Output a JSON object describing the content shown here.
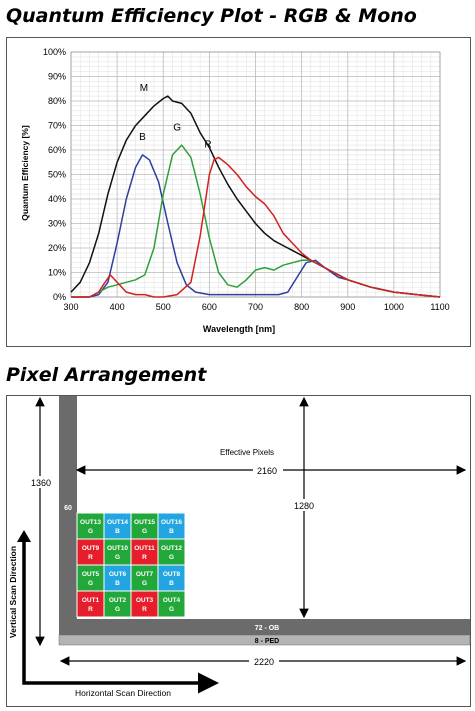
{
  "section1": {
    "title": "Quantum Efficiency Plot - RGB & Mono"
  },
  "section2": {
    "title": "Pixel Arrangement"
  },
  "chart_data": {
    "type": "line",
    "title": "",
    "xlabel": "Wavelength [nm]",
    "ylabel": "Quantum Efficiency [%]",
    "xlim": [
      300,
      1100
    ],
    "ylim": [
      0,
      100
    ],
    "x_ticks": [
      "300",
      "400",
      "500",
      "600",
      "700",
      "800",
      "900",
      "1000",
      "1100"
    ],
    "y_ticks": [
      "0%",
      "10%",
      "20%",
      "30%",
      "40%",
      "50%",
      "60%",
      "70%",
      "80%",
      "90%",
      "100%"
    ],
    "grid": true,
    "series": [
      {
        "name": "M",
        "color": "#111111",
        "points": [
          [
            300,
            2
          ],
          [
            320,
            6
          ],
          [
            340,
            14
          ],
          [
            360,
            26
          ],
          [
            380,
            42
          ],
          [
            400,
            55
          ],
          [
            420,
            64
          ],
          [
            440,
            70
          ],
          [
            460,
            74
          ],
          [
            480,
            78
          ],
          [
            500,
            81
          ],
          [
            510,
            82
          ],
          [
            520,
            80
          ],
          [
            540,
            79
          ],
          [
            560,
            75
          ],
          [
            580,
            67
          ],
          [
            600,
            61
          ],
          [
            620,
            53
          ],
          [
            640,
            46
          ],
          [
            660,
            40
          ],
          [
            680,
            35
          ],
          [
            700,
            30
          ],
          [
            720,
            26
          ],
          [
            740,
            23
          ],
          [
            760,
            21
          ],
          [
            780,
            19
          ],
          [
            800,
            17
          ],
          [
            820,
            15
          ],
          [
            840,
            13
          ],
          [
            860,
            11
          ],
          [
            880,
            9
          ],
          [
            900,
            7
          ],
          [
            950,
            4
          ],
          [
            1000,
            2
          ],
          [
            1050,
            1
          ],
          [
            1100,
            0
          ]
        ]
      },
      {
        "name": "B",
        "color": "#2e3f9e",
        "points": [
          [
            300,
            0
          ],
          [
            340,
            0
          ],
          [
            360,
            1
          ],
          [
            380,
            6
          ],
          [
            400,
            22
          ],
          [
            420,
            40
          ],
          [
            440,
            53
          ],
          [
            455,
            58
          ],
          [
            470,
            56
          ],
          [
            490,
            47
          ],
          [
            510,
            30
          ],
          [
            530,
            14
          ],
          [
            550,
            5
          ],
          [
            570,
            2
          ],
          [
            600,
            1
          ],
          [
            650,
            1
          ],
          [
            700,
            1
          ],
          [
            750,
            1
          ],
          [
            770,
            2
          ],
          [
            790,
            8
          ],
          [
            810,
            14
          ],
          [
            830,
            15
          ],
          [
            850,
            12
          ],
          [
            880,
            8
          ],
          [
            900,
            7
          ],
          [
            950,
            4
          ],
          [
            1000,
            2
          ],
          [
            1050,
            1
          ],
          [
            1100,
            0
          ]
        ]
      },
      {
        "name": "G",
        "color": "#2ea03a",
        "points": [
          [
            300,
            0
          ],
          [
            340,
            0
          ],
          [
            360,
            2
          ],
          [
            380,
            4
          ],
          [
            400,
            5
          ],
          [
            420,
            6
          ],
          [
            440,
            7
          ],
          [
            460,
            9
          ],
          [
            480,
            20
          ],
          [
            500,
            42
          ],
          [
            520,
            58
          ],
          [
            540,
            62
          ],
          [
            560,
            57
          ],
          [
            580,
            42
          ],
          [
            600,
            24
          ],
          [
            620,
            10
          ],
          [
            640,
            5
          ],
          [
            660,
            4
          ],
          [
            680,
            7
          ],
          [
            700,
            11
          ],
          [
            720,
            12
          ],
          [
            740,
            11
          ],
          [
            760,
            13
          ],
          [
            780,
            14
          ],
          [
            800,
            15
          ],
          [
            820,
            15
          ],
          [
            840,
            13
          ],
          [
            860,
            11
          ],
          [
            880,
            9
          ],
          [
            900,
            7
          ],
          [
            950,
            4
          ],
          [
            1000,
            2
          ],
          [
            1050,
            1
          ],
          [
            1100,
            0
          ]
        ]
      },
      {
        "name": "R",
        "color": "#d42020",
        "points": [
          [
            300,
            0
          ],
          [
            340,
            0
          ],
          [
            360,
            2
          ],
          [
            370,
            5
          ],
          [
            385,
            9
          ],
          [
            400,
            6
          ],
          [
            420,
            2
          ],
          [
            440,
            1
          ],
          [
            460,
            1
          ],
          [
            480,
            0
          ],
          [
            500,
            0
          ],
          [
            530,
            1
          ],
          [
            560,
            6
          ],
          [
            580,
            25
          ],
          [
            600,
            50
          ],
          [
            610,
            56
          ],
          [
            620,
            57
          ],
          [
            640,
            54
          ],
          [
            660,
            50
          ],
          [
            680,
            45
          ],
          [
            700,
            41
          ],
          [
            720,
            38
          ],
          [
            740,
            33
          ],
          [
            760,
            26
          ],
          [
            780,
            22
          ],
          [
            800,
            18
          ],
          [
            820,
            15
          ],
          [
            840,
            13
          ],
          [
            860,
            11
          ],
          [
            880,
            9
          ],
          [
            900,
            7
          ],
          [
            950,
            4
          ],
          [
            1000,
            2
          ],
          [
            1050,
            1
          ],
          [
            1100,
            0
          ]
        ]
      }
    ],
    "curve_labels": [
      {
        "text": "M",
        "x": 458,
        "y": 84
      },
      {
        "text": "B",
        "x": 455,
        "y": 64
      },
      {
        "text": "G",
        "x": 530,
        "y": 68
      },
      {
        "text": "R",
        "x": 597,
        "y": 61
      }
    ]
  },
  "diagram": {
    "effective_label": "Effective Pixels",
    "dim_2160": "2160",
    "dim_1280": "1280",
    "dim_1360": "1360",
    "dim_2220": "2220",
    "dim_60": "60",
    "ob_label": "72 - OB",
    "ped_label": "8 - PED",
    "vertical_scan": "Vertical Scan Direction",
    "horizontal_scan": "Horizontal Scan Direction",
    "colors": {
      "G": "#22a83a",
      "B": "#22a5e0",
      "R": "#e61e2b",
      "dark": "#6b6b6b",
      "ped": "#b4b4b4"
    },
    "cells": [
      [
        {
          "out": "OUT13",
          "ch": "G"
        },
        {
          "out": "OUT14",
          "ch": "B"
        },
        {
          "out": "OUT15",
          "ch": "G"
        },
        {
          "out": "OUT16",
          "ch": "B"
        }
      ],
      [
        {
          "out": "OUT9",
          "ch": "R"
        },
        {
          "out": "OUT10",
          "ch": "G"
        },
        {
          "out": "OUT11",
          "ch": "R"
        },
        {
          "out": "OUT12",
          "ch": "G"
        }
      ],
      [
        {
          "out": "OUT5",
          "ch": "G"
        },
        {
          "out": "OUT6",
          "ch": "B"
        },
        {
          "out": "OUT7",
          "ch": "G"
        },
        {
          "out": "OUT8",
          "ch": "B"
        }
      ],
      [
        {
          "out": "OUT1",
          "ch": "R"
        },
        {
          "out": "OUT2",
          "ch": "G"
        },
        {
          "out": "OUT3",
          "ch": "R"
        },
        {
          "out": "OUT4",
          "ch": "G"
        }
      ]
    ]
  }
}
